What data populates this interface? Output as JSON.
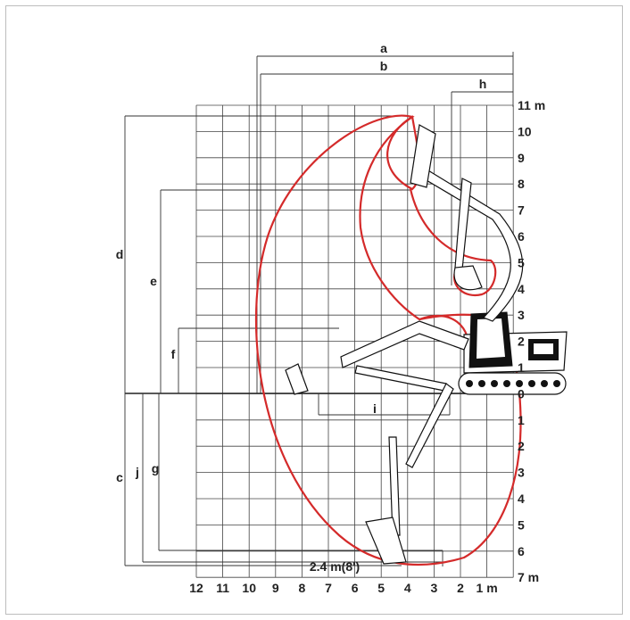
{
  "diagram": {
    "right_axis_labels": [
      "11 m",
      "10",
      "9",
      "8",
      "7",
      "6",
      "5",
      "4",
      "3",
      "2",
      "1",
      "0",
      "1",
      "2",
      "3",
      "4",
      "5",
      "6",
      "7 m"
    ],
    "bottom_axis_labels": [
      "12",
      "11",
      "10",
      "9",
      "8",
      "7",
      "6",
      "5",
      "4",
      "3",
      "2",
      "1 m"
    ],
    "dimension_labels": {
      "a": "a",
      "b": "b",
      "h": "h",
      "d": "d",
      "e": "e",
      "f": "f",
      "c": "c",
      "j": "j",
      "g": "g",
      "i": "i"
    },
    "depth_note": "2.4 m(8')",
    "envelope_color": "#d42a2a"
  }
}
